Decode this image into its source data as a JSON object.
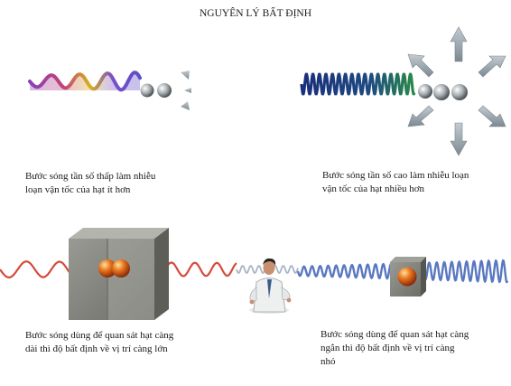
{
  "title": "NGUYÊN LÝ BẤT ĐỊNH",
  "captions": {
    "top_left": [
      "Bước sóng tần số thấp làm nhiễu",
      "loạn vận tốc của hạt ít hơn"
    ],
    "top_right": [
      "Bước sóng tần số cao làm nhiễu loạn",
      "vận tốc của hạt nhiều hơn"
    ],
    "bottom_left": [
      "Bước sóng dùng để quan sát hạt càng",
      "dài thì độ bất định về vị trí càng lớn"
    ],
    "bottom_right": [
      "Bước sóng dùng để quan sát hạt càng",
      "ngắn thì độ bất định về vị trí càng",
      "nhỏ"
    ]
  },
  "colors": {
    "low_freq_wave": [
      "#8a3fb8",
      "#c0407a",
      "#d8b020",
      "#5a4fc8"
    ],
    "high_freq_wave": [
      "#1a2f7a",
      "#2a8a4a"
    ],
    "long_observation_wave": "#d64a3a",
    "short_observation_wave": "#5a78c0",
    "particle": "#d85a1a",
    "box": "#8c8c86",
    "arrow": "#9aa6ae"
  },
  "icons": [
    "particle",
    "observer-figure",
    "scatter-arrow",
    "observation-box"
  ]
}
